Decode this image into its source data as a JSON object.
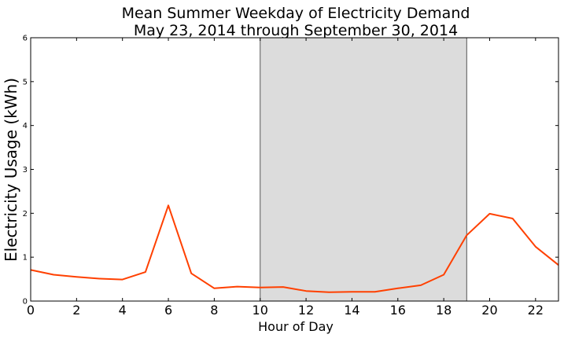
{
  "chart_data": {
    "type": "line",
    "title": "Mean Summer Weekday of Electricity Demand",
    "subtitle": "May 23, 2014 through September 30, 2014",
    "xlabel": "Hour of Day",
    "ylabel": "Electricity Usage (kWh)",
    "xlim": [
      0,
      23
    ],
    "ylim": [
      0,
      6
    ],
    "x_ticks": [
      0,
      2,
      4,
      6,
      8,
      10,
      12,
      14,
      16,
      18,
      20,
      22
    ],
    "y_ticks": [
      0,
      1,
      2,
      3,
      4,
      5,
      6
    ],
    "grid": false,
    "shaded_region": {
      "x_start": 10,
      "x_end": 19,
      "color": "#dcdcdc"
    },
    "series": [
      {
        "color": "#ff4000",
        "x": [
          0,
          1,
          2,
          3,
          4,
          5,
          6,
          7,
          8,
          9,
          10,
          11,
          12,
          13,
          14,
          15,
          16,
          17,
          18,
          19,
          20,
          21,
          22,
          23
        ],
        "values": [
          0.71,
          0.6,
          0.55,
          0.51,
          0.49,
          0.66,
          2.18,
          0.63,
          0.29,
          0.33,
          0.31,
          0.32,
          0.23,
          0.2,
          0.21,
          0.21,
          0.29,
          0.36,
          0.6,
          1.5,
          1.99,
          1.88,
          1.24,
          0.82
        ]
      }
    ]
  }
}
